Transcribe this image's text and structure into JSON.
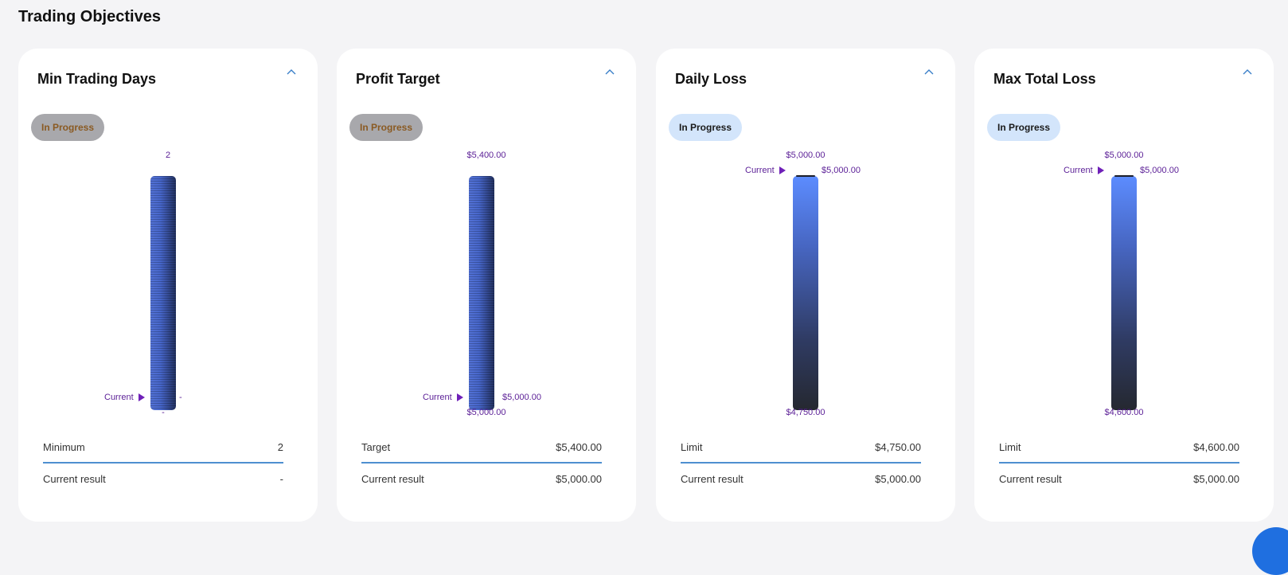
{
  "page": {
    "title": "Trading Objectives"
  },
  "colors": {
    "accent": "#4e8fd0",
    "label_purple": "#5a1e96",
    "bar_blue": "#5c8cff",
    "bar_dark": "#252830"
  },
  "cards": [
    {
      "title": "Min Trading Days",
      "status": "In Progress",
      "top_label": "2",
      "current_label": "Current",
      "current_value": "-",
      "bottom_label": "-",
      "row1_label": "Minimum",
      "row1_value": "2",
      "row2_label": "Current result",
      "row2_value": "-"
    },
    {
      "title": "Profit Target",
      "status": "In Progress",
      "top_label": "$5,400.00",
      "current_label": "Current",
      "current_value": "$5,000.00",
      "bottom_label": "$5,000.00",
      "row1_label": "Target",
      "row1_value": "$5,400.00",
      "row2_label": "Current result",
      "row2_value": "$5,000.00"
    },
    {
      "title": "Daily Loss",
      "status": "In Progress",
      "top_label": "$5,000.00",
      "current_label": "Current",
      "current_value": "$5,000.00",
      "bottom_label": "$4,750.00",
      "row1_label": "Limit",
      "row1_value": "$4,750.00",
      "row2_label": "Current result",
      "row2_value": "$5,000.00"
    },
    {
      "title": "Max Total Loss",
      "status": "In Progress",
      "top_label": "$5,000.00",
      "current_label": "Current",
      "current_value": "$5,000.00",
      "bottom_label": "$4,600.00",
      "row1_label": "Limit",
      "row1_value": "$4,600.00",
      "row2_label": "Current result",
      "row2_value": "$5,000.00"
    }
  ],
  "icons": {
    "collapse": "chevron-up-icon",
    "marker": "triangle-right-icon"
  }
}
